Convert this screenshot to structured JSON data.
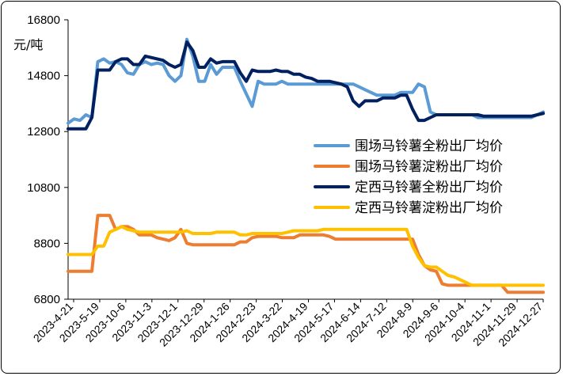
{
  "chart_data": {
    "type": "line",
    "title": "",
    "xlabel": "",
    "ylabel": "元/吨",
    "ylim": [
      6800,
      16800
    ],
    "y_ticks": [
      "16800",
      "14800",
      "12800",
      "10800",
      "8800",
      "6800"
    ],
    "grid": false,
    "legend_position": "right",
    "x_tick_labels": [
      "2023-4-21",
      "2023-5-19",
      "2023-10-6",
      "2023-11-3",
      "2023-12-1",
      "2023-12-29",
      "2024-1-26",
      "2024-2-23",
      "2024-3-22",
      "2024-4-19",
      "2024-5-17",
      "2024-6-14",
      "2024-7-12",
      "2024-8-9",
      "2024-9-6",
      "2024-10-4",
      "2024-11-1",
      "2024-11-29",
      "2024-12-27"
    ],
    "series": [
      {
        "name": "围场马铃薯全粉出厂均价",
        "color": "#5B9BD5",
        "values": [
          13100,
          13250,
          13200,
          13400,
          13300,
          15300,
          15400,
          15250,
          15300,
          15200,
          14900,
          14850,
          15200,
          15300,
          15200,
          15250,
          15200,
          14800,
          14600,
          14800,
          16100,
          15500,
          14600,
          14600,
          15200,
          14850,
          15100,
          15100,
          15100,
          14600,
          14150,
          13700,
          14600,
          14500,
          14500,
          14500,
          14600,
          14500,
          14500,
          14500,
          14500,
          14500,
          14500,
          14500,
          14500,
          14500,
          14500,
          14500,
          14500,
          14400,
          14300,
          14200,
          14100,
          14100,
          14100,
          14100,
          14200,
          14200,
          14200,
          14500,
          14400,
          13500,
          13400,
          13400,
          13400,
          13400,
          13400,
          13400,
          13400,
          13300,
          13300,
          13300,
          13300,
          13300,
          13300,
          13300,
          13300,
          13300,
          13300,
          13400,
          13500
        ]
      },
      {
        "name": "围场马铃薯淀粉出厂均价",
        "color": "#ED7D31",
        "values": [
          7800,
          7800,
          7800,
          7800,
          7800,
          9800,
          9800,
          9800,
          9300,
          9400,
          9400,
          9300,
          9100,
          9100,
          9100,
          9000,
          8950,
          8900,
          9000,
          9300,
          8800,
          8750,
          8750,
          8750,
          8750,
          8750,
          8750,
          8750,
          8750,
          8850,
          8850,
          9000,
          9050,
          9050,
          9050,
          9050,
          9000,
          9000,
          9000,
          9100,
          9100,
          9100,
          9100,
          9100,
          9050,
          8950,
          8950,
          8950,
          8950,
          8950,
          8950,
          8950,
          8950,
          8950,
          8950,
          8950,
          8950,
          8950,
          8950,
          8400,
          8000,
          7850,
          7800,
          7350,
          7300,
          7300,
          7300,
          7300,
          7300,
          7300,
          7300,
          7300,
          7300,
          7300,
          7050,
          7050,
          7050,
          7050,
          7050,
          7050,
          7050
        ]
      },
      {
        "name": "定西马铃薯全粉出厂均价",
        "color": "#002060",
        "values": [
          12900,
          12900,
          12900,
          12900,
          13300,
          15000,
          15000,
          15000,
          15300,
          15400,
          15400,
          15200,
          15200,
          15500,
          15450,
          15400,
          15350,
          15200,
          15100,
          15200,
          16000,
          15700,
          15100,
          15100,
          15400,
          15250,
          15300,
          15300,
          15300,
          14900,
          14600,
          15000,
          14950,
          14950,
          14950,
          15000,
          14950,
          14950,
          14850,
          14850,
          14750,
          14700,
          14600,
          14600,
          14600,
          14550,
          14500,
          14400,
          13900,
          13700,
          13900,
          13900,
          13900,
          14000,
          14000,
          14000,
          14100,
          14100,
          13600,
          13200,
          13200,
          13300,
          13400,
          13400,
          13400,
          13400,
          13400,
          13400,
          13400,
          13400,
          13350,
          13350,
          13350,
          13350,
          13350,
          13350,
          13350,
          13350,
          13350,
          13400,
          13450
        ]
      },
      {
        "name": "定西马铃薯淀粉出厂均价",
        "color": "#FFC000",
        "values": [
          8400,
          8400,
          8400,
          8400,
          8400,
          8700,
          8700,
          9200,
          9300,
          9400,
          9300,
          9250,
          9200,
          9200,
          9200,
          9200,
          9200,
          9200,
          9200,
          9200,
          9250,
          9150,
          9150,
          9150,
          9150,
          9200,
          9200,
          9200,
          9200,
          9100,
          9100,
          9150,
          9150,
          9150,
          9150,
          9150,
          9150,
          9200,
          9250,
          9250,
          9250,
          9250,
          9250,
          9300,
          9300,
          9300,
          9300,
          9300,
          9300,
          9300,
          9300,
          9300,
          9300,
          9300,
          9300,
          9300,
          9300,
          9300,
          8700,
          8300,
          8000,
          7950,
          7950,
          7800,
          7650,
          7600,
          7500,
          7400,
          7300,
          7300,
          7300,
          7300,
          7300,
          7300,
          7300,
          7300,
          7300,
          7300,
          7300,
          7300,
          7300
        ]
      }
    ]
  }
}
